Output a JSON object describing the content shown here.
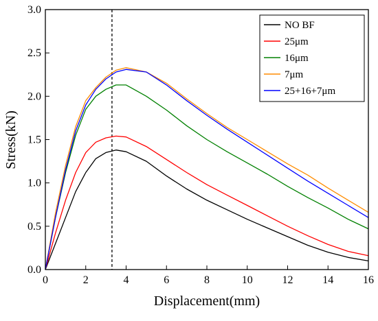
{
  "chart_data": {
    "type": "line",
    "title": "",
    "xlabel": "Displacement(mm)",
    "ylabel": "Stress(kN)",
    "xlim": [
      0,
      16
    ],
    "ylim": [
      0,
      3.0
    ],
    "x_ticks": [
      "0",
      "2",
      "4",
      "6",
      "8",
      "10",
      "12",
      "14",
      "16"
    ],
    "y_ticks": [
      "0.0",
      "0.5",
      "1.0",
      "1.5",
      "2.0",
      "2.5",
      "3.0"
    ],
    "grid": false,
    "legend_position": "top-right",
    "reference_line": {
      "x": 3.3,
      "style": "dashed"
    },
    "series": [
      {
        "name": "NO BF",
        "color": "#000000",
        "points": [
          [
            0,
            0
          ],
          [
            0.5,
            0.3
          ],
          [
            1,
            0.6
          ],
          [
            1.5,
            0.9
          ],
          [
            2,
            1.12
          ],
          [
            2.5,
            1.28
          ],
          [
            3,
            1.35
          ],
          [
            3.5,
            1.38
          ],
          [
            4,
            1.36
          ],
          [
            5,
            1.25
          ],
          [
            6,
            1.08
          ],
          [
            7,
            0.93
          ],
          [
            8,
            0.8
          ],
          [
            9,
            0.69
          ],
          [
            10,
            0.58
          ],
          [
            11,
            0.48
          ],
          [
            12,
            0.38
          ],
          [
            13,
            0.28
          ],
          [
            14,
            0.2
          ],
          [
            15,
            0.14
          ],
          [
            16,
            0.1
          ]
        ]
      },
      {
        "name": "25μm",
        "color": "#ff0000",
        "points": [
          [
            0,
            0
          ],
          [
            0.5,
            0.42
          ],
          [
            1,
            0.8
          ],
          [
            1.5,
            1.12
          ],
          [
            2,
            1.35
          ],
          [
            2.5,
            1.47
          ],
          [
            3,
            1.52
          ],
          [
            3.5,
            1.54
          ],
          [
            4,
            1.53
          ],
          [
            5,
            1.42
          ],
          [
            6,
            1.27
          ],
          [
            7,
            1.12
          ],
          [
            8,
            0.98
          ],
          [
            9,
            0.86
          ],
          [
            10,
            0.74
          ],
          [
            11,
            0.62
          ],
          [
            12,
            0.5
          ],
          [
            13,
            0.39
          ],
          [
            14,
            0.29
          ],
          [
            15,
            0.21
          ],
          [
            16,
            0.16
          ]
        ]
      },
      {
        "name": "16μm",
        "color": "#008000",
        "points": [
          [
            0,
            0
          ],
          [
            0.5,
            0.6
          ],
          [
            1,
            1.12
          ],
          [
            1.5,
            1.55
          ],
          [
            2,
            1.85
          ],
          [
            2.5,
            2.0
          ],
          [
            3,
            2.08
          ],
          [
            3.5,
            2.13
          ],
          [
            4,
            2.13
          ],
          [
            5,
            2.0
          ],
          [
            6,
            1.84
          ],
          [
            7,
            1.66
          ],
          [
            8,
            1.5
          ],
          [
            9,
            1.36
          ],
          [
            10,
            1.23
          ],
          [
            11,
            1.1
          ],
          [
            12,
            0.96
          ],
          [
            13,
            0.83
          ],
          [
            14,
            0.71
          ],
          [
            15,
            0.58
          ],
          [
            16,
            0.47
          ]
        ]
      },
      {
        "name": "7μm",
        "color": "#ff8c00",
        "points": [
          [
            0,
            0
          ],
          [
            0.5,
            0.65
          ],
          [
            1,
            1.2
          ],
          [
            1.5,
            1.65
          ],
          [
            2,
            1.95
          ],
          [
            2.5,
            2.1
          ],
          [
            3,
            2.22
          ],
          [
            3.5,
            2.3
          ],
          [
            4,
            2.33
          ],
          [
            5,
            2.28
          ],
          [
            6,
            2.15
          ],
          [
            7,
            1.97
          ],
          [
            8,
            1.8
          ],
          [
            9,
            1.64
          ],
          [
            10,
            1.5
          ],
          [
            11,
            1.36
          ],
          [
            12,
            1.22
          ],
          [
            13,
            1.09
          ],
          [
            14,
            0.94
          ],
          [
            15,
            0.8
          ],
          [
            16,
            0.66
          ]
        ]
      },
      {
        "name": "25+16+7μm",
        "color": "#0000ff",
        "points": [
          [
            0,
            0
          ],
          [
            0.5,
            0.6
          ],
          [
            1,
            1.15
          ],
          [
            1.5,
            1.6
          ],
          [
            2,
            1.9
          ],
          [
            2.5,
            2.08
          ],
          [
            3,
            2.2
          ],
          [
            3.5,
            2.28
          ],
          [
            4,
            2.31
          ],
          [
            5,
            2.28
          ],
          [
            6,
            2.13
          ],
          [
            7,
            1.95
          ],
          [
            8,
            1.78
          ],
          [
            9,
            1.62
          ],
          [
            10,
            1.47
          ],
          [
            11,
            1.32
          ],
          [
            12,
            1.17
          ],
          [
            13,
            1.02
          ],
          [
            14,
            0.88
          ],
          [
            15,
            0.74
          ],
          [
            16,
            0.6
          ]
        ]
      }
    ]
  }
}
